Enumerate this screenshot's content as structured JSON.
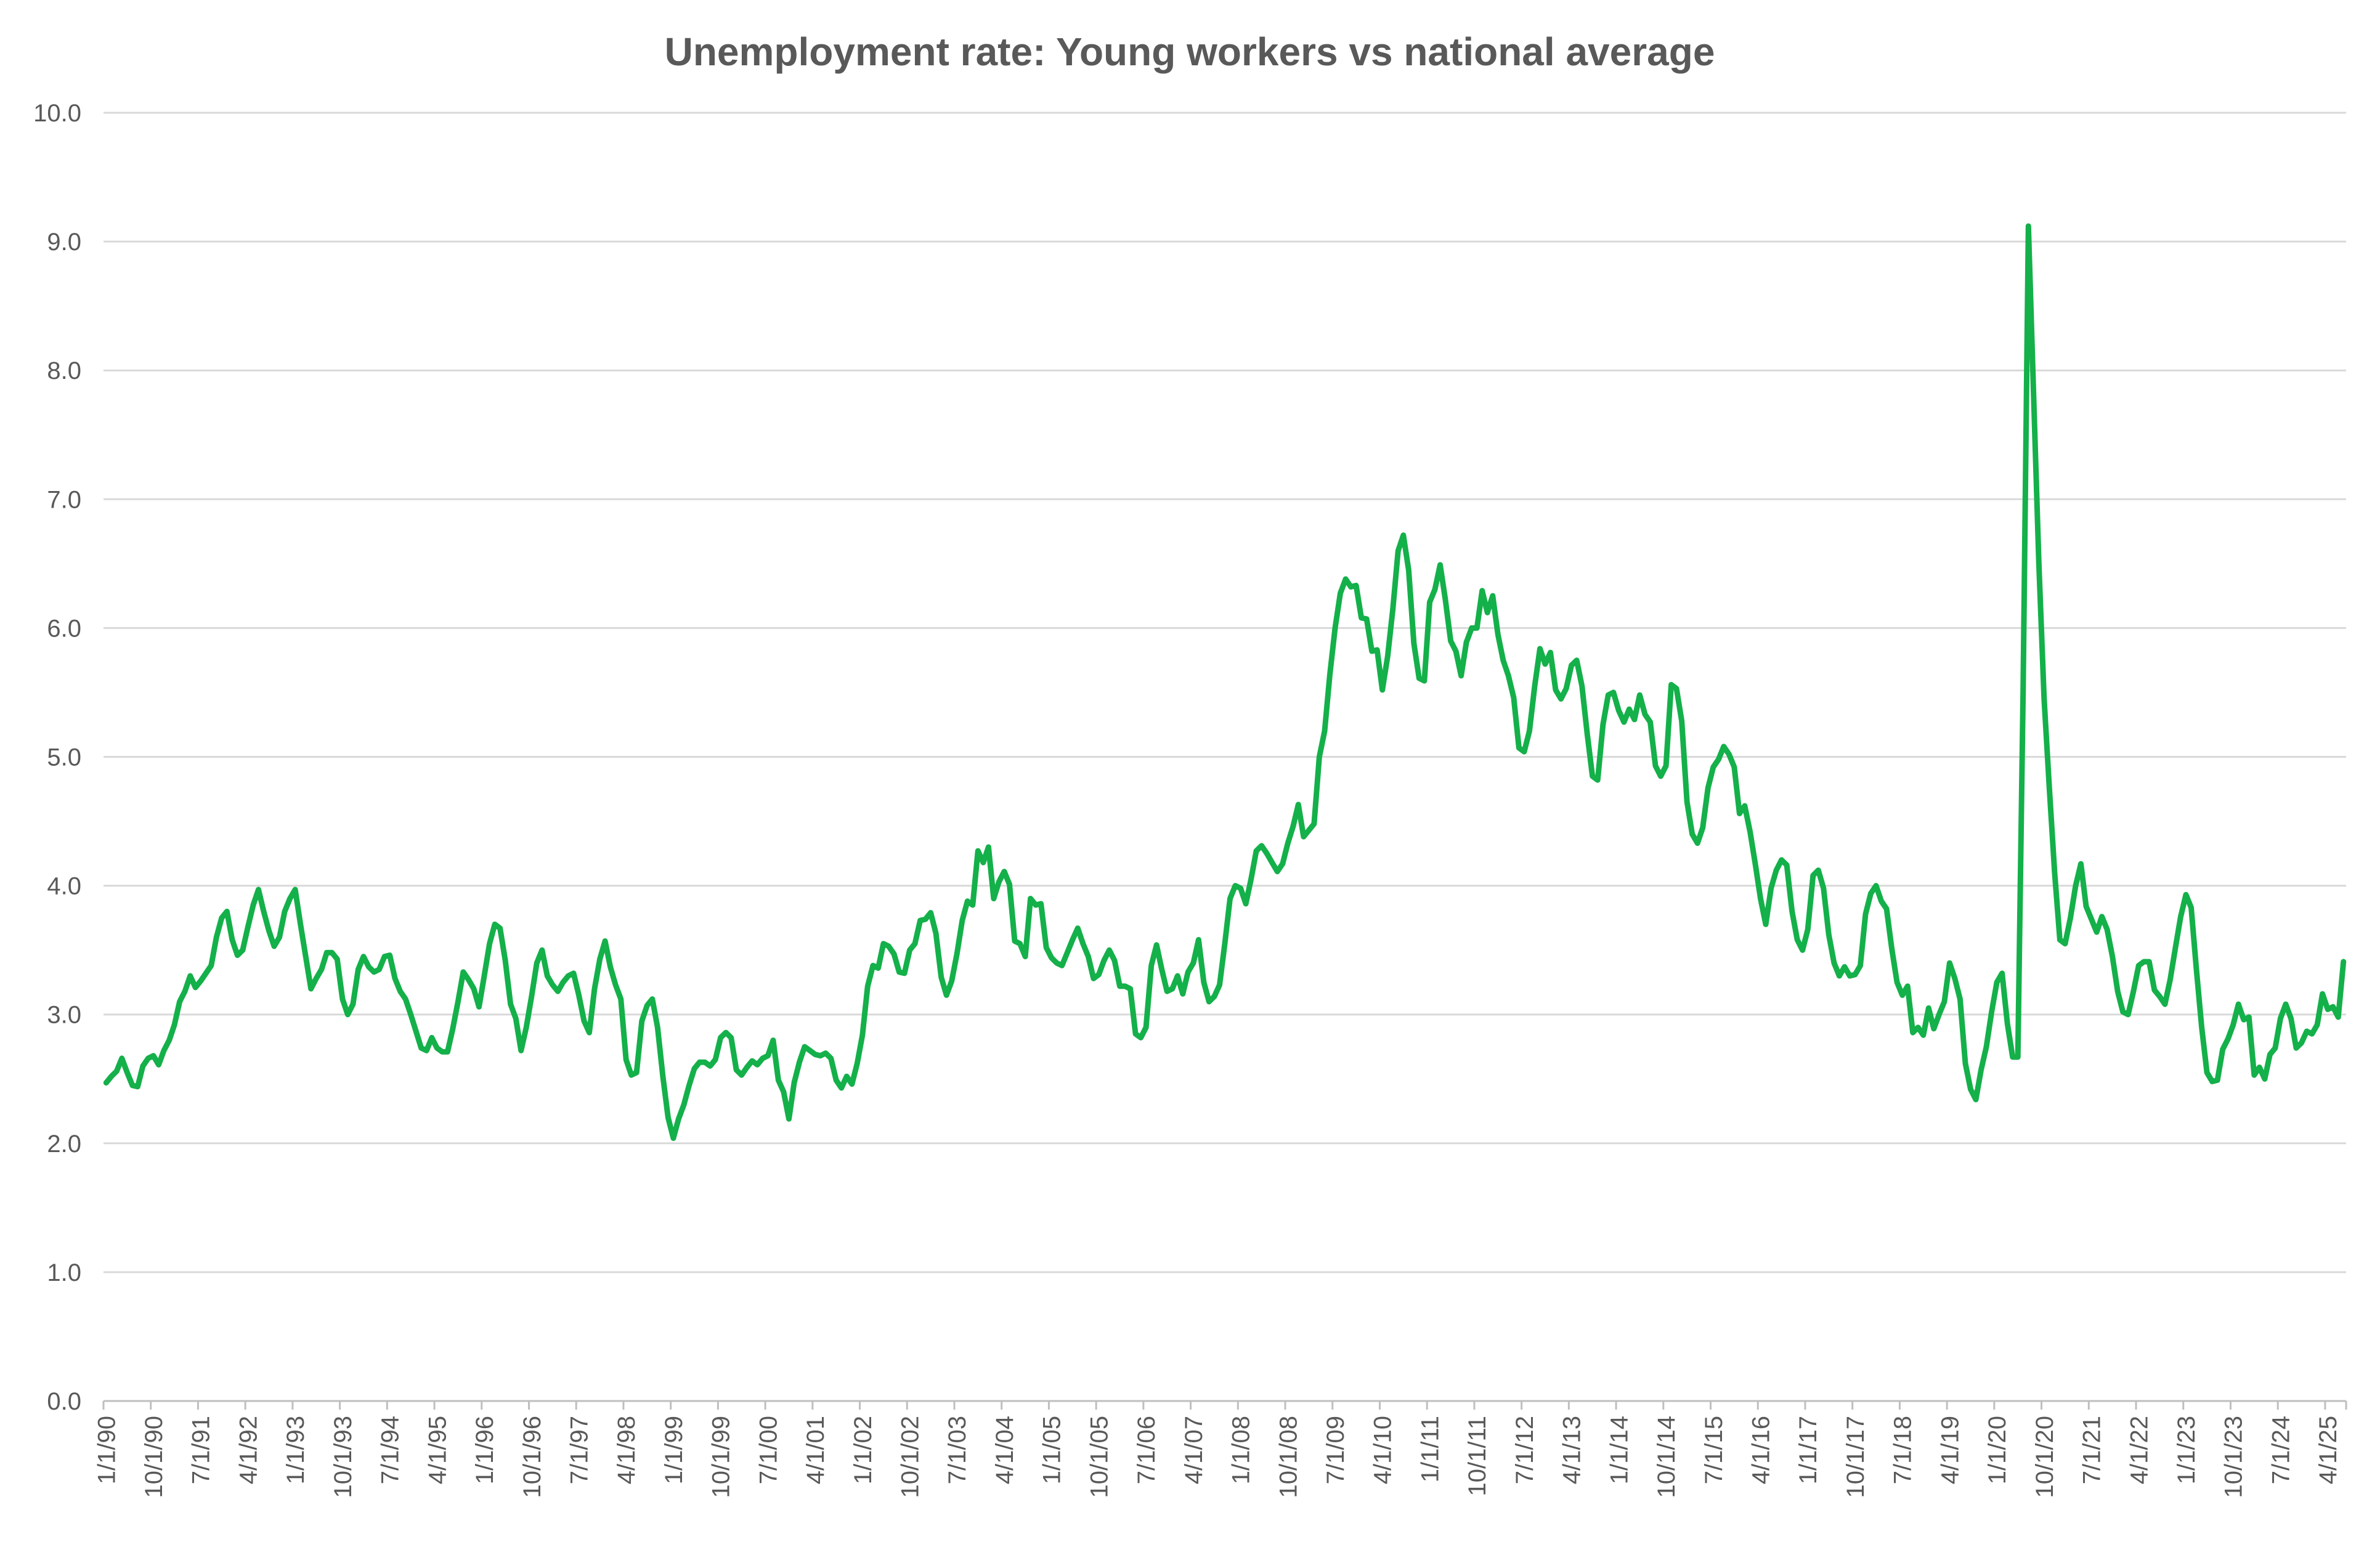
{
  "chart_data": {
    "type": "line",
    "title": "Unemployment rate: Young workers vs national average",
    "xlabel": "",
    "ylabel": "",
    "ylim": [
      0,
      10
    ],
    "yticks": [
      "0.0",
      "1.0",
      "2.0",
      "3.0",
      "4.0",
      "5.0",
      "6.0",
      "7.0",
      "8.0",
      "9.0",
      "10.0"
    ],
    "x_start": "1/1/90",
    "x_step_months": 1,
    "xtick_labels": [
      "1/1/90",
      "10/1/90",
      "7/1/91",
      "4/1/92",
      "1/1/93",
      "10/1/93",
      "7/1/94",
      "4/1/95",
      "1/1/96",
      "10/1/96",
      "7/1/97",
      "4/1/98",
      "1/1/99",
      "10/1/99",
      "7/1/00",
      "4/1/01",
      "1/1/02",
      "10/1/02",
      "7/1/03",
      "4/1/04",
      "1/1/05",
      "10/1/05",
      "7/1/06",
      "4/1/07",
      "1/1/08",
      "10/1/08",
      "7/1/09",
      "4/1/10",
      "1/1/11",
      "10/1/11",
      "7/1/12",
      "4/1/13",
      "1/1/14",
      "10/1/14",
      "7/1/15",
      "4/1/16",
      "1/1/17",
      "10/1/17",
      "7/1/18",
      "4/1/19",
      "1/1/20",
      "10/1/20",
      "7/1/21",
      "4/1/22",
      "1/1/23",
      "10/1/23",
      "7/1/24",
      "4/1/25"
    ],
    "grid": true,
    "legend": "none",
    "series": [
      {
        "color": "#14b04a",
        "values": [
          2.47,
          2.52,
          2.56,
          2.66,
          2.55,
          2.45,
          2.44,
          2.6,
          2.66,
          2.68,
          2.61,
          2.72,
          2.8,
          2.92,
          3.1,
          3.18,
          3.3,
          3.21,
          3.26,
          3.32,
          3.38,
          3.6,
          3.75,
          3.8,
          3.58,
          3.46,
          3.5,
          3.68,
          3.85,
          3.97,
          3.8,
          3.65,
          3.53,
          3.6,
          3.8,
          3.9,
          3.97,
          3.7,
          3.45,
          3.2,
          3.28,
          3.35,
          3.48,
          3.48,
          3.43,
          3.12,
          3.0,
          3.08,
          3.35,
          3.45,
          3.37,
          3.33,
          3.35,
          3.45,
          3.46,
          3.28,
          3.18,
          3.12,
          3.0,
          2.87,
          2.74,
          2.72,
          2.82,
          2.74,
          2.71,
          2.71,
          2.89,
          3.1,
          3.33,
          3.27,
          3.2,
          3.06,
          3.3,
          3.55,
          3.7,
          3.67,
          3.42,
          3.08,
          2.97,
          2.72,
          2.9,
          3.14,
          3.4,
          3.5,
          3.3,
          3.23,
          3.18,
          3.25,
          3.3,
          3.32,
          3.15,
          2.95,
          2.86,
          3.2,
          3.43,
          3.57,
          3.37,
          3.23,
          3.12,
          2.65,
          2.53,
          2.55,
          2.95,
          3.07,
          3.12,
          2.9,
          2.52,
          2.2,
          2.04,
          2.19,
          2.3,
          2.45,
          2.58,
          2.63,
          2.63,
          2.6,
          2.65,
          2.82,
          2.86,
          2.82,
          2.57,
          2.53,
          2.59,
          2.64,
          2.61,
          2.66,
          2.68,
          2.8,
          2.49,
          2.4,
          2.19,
          2.47,
          2.63,
          2.75,
          2.72,
          2.69,
          2.68,
          2.7,
          2.66,
          2.49,
          2.43,
          2.52,
          2.46,
          2.62,
          2.84,
          3.22,
          3.38,
          3.36,
          3.55,
          3.53,
          3.47,
          3.33,
          3.32,
          3.5,
          3.55,
          3.73,
          3.74,
          3.79,
          3.63,
          3.29,
          3.15,
          3.26,
          3.47,
          3.73,
          3.88,
          3.85,
          4.27,
          4.18,
          4.3,
          3.9,
          4.03,
          4.11,
          4.01,
          3.57,
          3.55,
          3.45,
          3.9,
          3.85,
          3.86,
          3.52,
          3.44,
          3.4,
          3.38,
          3.48,
          3.58,
          3.67,
          3.55,
          3.45,
          3.28,
          3.31,
          3.42,
          3.5,
          3.42,
          3.22,
          3.22,
          3.2,
          2.85,
          2.82,
          2.9,
          3.38,
          3.54,
          3.35,
          3.18,
          3.2,
          3.3,
          3.16,
          3.33,
          3.4,
          3.58,
          3.25,
          3.1,
          3.14,
          3.23,
          3.55,
          3.9,
          4.0,
          3.98,
          3.86,
          4.05,
          4.27,
          4.31,
          4.25,
          4.18,
          4.11,
          4.17,
          4.33,
          4.46,
          4.63,
          4.38,
          4.43,
          4.48,
          5.0,
          5.2,
          5.64,
          6.0,
          6.27,
          6.38,
          6.32,
          6.33,
          6.08,
          6.07,
          5.82,
          5.83,
          5.52,
          5.78,
          6.15,
          6.6,
          6.72,
          6.45,
          5.88,
          5.61,
          5.59,
          6.2,
          6.3,
          6.49,
          6.22,
          5.9,
          5.82,
          5.63,
          5.89,
          6.0,
          6.0,
          6.29,
          6.12,
          6.25,
          5.95,
          5.75,
          5.63,
          5.46,
          5.07,
          5.04,
          5.2,
          5.55,
          5.84,
          5.72,
          5.81,
          5.52,
          5.45,
          5.53,
          5.71,
          5.75,
          5.55,
          5.18,
          4.85,
          4.82,
          5.25,
          5.48,
          5.5,
          5.36,
          5.27,
          5.37,
          5.29,
          5.48,
          5.33,
          5.27,
          4.93,
          4.85,
          4.93,
          5.56,
          5.53,
          5.28,
          4.65,
          4.4,
          4.33,
          4.45,
          4.76,
          4.92,
          4.98,
          5.08,
          5.02,
          4.92,
          4.56,
          4.62,
          4.42,
          4.17,
          3.9,
          3.7,
          3.98,
          4.12,
          4.2,
          4.16,
          3.8,
          3.58,
          3.5,
          3.66,
          4.08,
          4.12,
          3.98,
          3.62,
          3.4,
          3.3,
          3.37,
          3.3,
          3.31,
          3.38,
          3.78,
          3.94,
          4.0,
          3.88,
          3.82,
          3.51,
          3.25,
          3.15,
          3.22,
          2.86,
          2.9,
          2.84,
          3.05,
          2.89,
          3.0,
          3.1,
          3.4,
          3.28,
          3.12,
          2.62,
          2.42,
          2.34,
          2.57,
          2.75,
          3.02,
          3.25,
          3.32,
          2.93,
          2.67,
          2.67,
          5.5,
          9.12,
          7.8,
          6.5,
          5.45,
          4.75,
          4.1,
          3.58,
          3.55,
          3.75,
          4.0,
          4.17,
          3.84,
          3.74,
          3.64,
          3.76,
          3.66,
          3.45,
          3.18,
          3.02,
          3.0,
          3.18,
          3.38,
          3.41,
          3.41,
          3.19,
          3.14,
          3.08,
          3.27,
          3.52,
          3.76,
          3.93,
          3.83,
          3.35,
          2.9,
          2.55,
          2.48,
          2.49,
          2.73,
          2.81,
          2.92,
          3.08,
          2.96,
          2.98,
          2.53,
          2.59,
          2.5,
          2.69,
          2.74,
          2.97,
          3.08,
          2.97,
          2.74,
          2.78,
          2.87,
          2.85,
          2.92,
          3.16,
          3.04,
          3.06,
          2.98,
          3.41
        ]
      }
    ]
  }
}
